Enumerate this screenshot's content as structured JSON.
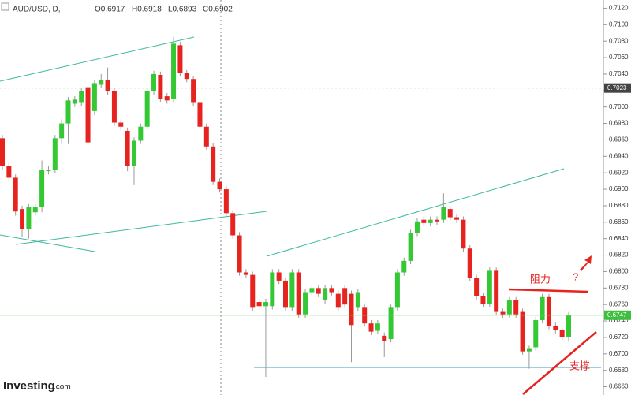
{
  "chart_data": {
    "type": "candlestick",
    "title": "AUD/USD, D,",
    "ohlc_header": [
      "O0.6917",
      "H0.6918",
      "L0.6893",
      "C0.6902"
    ],
    "open": [
      0.6962,
      0.6928,
      0.6914,
      0.6876,
      0.6852,
      0.6872,
      0.6878,
      0.6922,
      0.6924,
      0.6962,
      0.698,
      0.7004,
      0.7005,
      0.7024,
      0.6995,
      0.7027,
      0.7033,
      0.7019,
      0.6981,
      0.6971,
      0.6928,
      0.6959,
      0.6976,
      0.7019,
      0.7039,
      0.7013,
      0.701,
      0.7075,
      0.7041,
      0.7034,
      0.7005,
      0.6976,
      0.6952,
      0.6909,
      0.69,
      0.6871,
      0.6844,
      0.6799,
      0.6796,
      0.6763,
      0.6758,
      0.6758,
      0.6799,
      0.6789,
      0.6756,
      0.6799,
      0.6748,
      0.6775,
      0.678,
      0.6765,
      0.678,
      0.6773,
      0.678,
      0.6773,
      0.6756,
      0.6756,
      0.6737,
      0.6728,
      0.6722,
      0.6718,
      0.6756,
      0.6799,
      0.6813,
      0.6847,
      0.6863,
      0.6859,
      0.6863,
      0.6863,
      0.6876,
      0.6866,
      0.6863,
      0.6828,
      0.6792,
      0.677,
      0.6761,
      0.6801,
      0.6751,
      0.6748,
      0.6765,
      0.6751,
      0.6703,
      0.6708,
      0.6741,
      0.6769,
      0.6734,
      0.6729,
      0.672
    ],
    "high": [
      0.6966,
      0.6932,
      0.6918,
      0.688,
      0.6882,
      0.6882,
      0.6935,
      0.6928,
      0.6966,
      0.6985,
      0.7012,
      0.7013,
      0.7023,
      0.7028,
      0.7033,
      0.704,
      0.7048,
      0.7023,
      0.6985,
      0.6975,
      0.6963,
      0.698,
      0.7023,
      0.7044,
      0.7043,
      0.7017,
      0.7085,
      0.7079,
      0.7045,
      0.7038,
      0.7009,
      0.698,
      0.6956,
      0.6913,
      0.6904,
      0.6875,
      0.6848,
      0.6803,
      0.68,
      0.6767,
      0.6767,
      0.6803,
      0.6803,
      0.6793,
      0.6803,
      0.6803,
      0.6779,
      0.6784,
      0.6784,
      0.6784,
      0.6784,
      0.6777,
      0.6784,
      0.6777,
      0.6779,
      0.676,
      0.6741,
      0.6741,
      0.6726,
      0.676,
      0.6803,
      0.6817,
      0.6851,
      0.6865,
      0.6867,
      0.6867,
      0.6867,
      0.6895,
      0.688,
      0.687,
      0.6867,
      0.6832,
      0.6796,
      0.6774,
      0.6805,
      0.6805,
      0.6755,
      0.6769,
      0.6769,
      0.6755,
      0.671,
      0.6745,
      0.6773,
      0.6773,
      0.6738,
      0.6733,
      0.6751
    ],
    "low": [
      0.6924,
      0.691,
      0.6868,
      0.6842,
      0.684,
      0.6868,
      0.6872,
      0.6918,
      0.692,
      0.6955,
      0.6955,
      0.7,
      0.7001,
      0.695,
      0.699,
      0.7023,
      0.7015,
      0.6977,
      0.6972,
      0.6922,
      0.6905,
      0.6955,
      0.6972,
      0.7015,
      0.7006,
      0.7004,
      0.7005,
      0.7037,
      0.703,
      0.7001,
      0.6972,
      0.6948,
      0.6905,
      0.6896,
      0.6867,
      0.684,
      0.6795,
      0.6792,
      0.6752,
      0.6754,
      0.6672,
      0.6754,
      0.6785,
      0.6752,
      0.6752,
      0.6744,
      0.6744,
      0.6771,
      0.6769,
      0.6761,
      0.6771,
      0.6752,
      0.6756,
      0.669,
      0.6752,
      0.6733,
      0.6723,
      0.6724,
      0.6696,
      0.6714,
      0.6752,
      0.6795,
      0.6809,
      0.6843,
      0.6855,
      0.6855,
      0.6857,
      0.6859,
      0.6862,
      0.6859,
      0.6824,
      0.6788,
      0.6766,
      0.6757,
      0.6757,
      0.6747,
      0.6744,
      0.6744,
      0.6744,
      0.6699,
      0.6682,
      0.6704,
      0.6737,
      0.673,
      0.6725,
      0.6716,
      0.6716
    ],
    "close": [
      0.6928,
      0.6914,
      0.6873,
      0.6852,
      0.6878,
      0.6878,
      0.6924,
      0.6924,
      0.6962,
      0.698,
      0.7008,
      0.7009,
      0.7019,
      0.6957,
      0.7029,
      0.7033,
      0.7019,
      0.6981,
      0.6976,
      0.6928,
      0.6959,
      0.6976,
      0.7019,
      0.704,
      0.701,
      0.7008,
      0.7077,
      0.7041,
      0.7034,
      0.7005,
      0.6976,
      0.6952,
      0.6909,
      0.69,
      0.6871,
      0.6844,
      0.6799,
      0.6796,
      0.6756,
      0.6758,
      0.6763,
      0.6799,
      0.6789,
      0.6756,
      0.6799,
      0.6748,
      0.6775,
      0.678,
      0.6773,
      0.678,
      0.6775,
      0.6756,
      0.676,
      0.6735,
      0.6775,
      0.6737,
      0.6727,
      0.6737,
      0.6716,
      0.6756,
      0.6799,
      0.6813,
      0.6847,
      0.6861,
      0.6859,
      0.6863,
      0.6861,
      0.6878,
      0.6866,
      0.6863,
      0.6828,
      0.6792,
      0.677,
      0.6761,
      0.6801,
      0.6751,
      0.6748,
      0.6765,
      0.6748,
      0.6703,
      0.6706,
      0.6741,
      0.6769,
      0.6734,
      0.6729,
      0.672,
      0.6747
    ],
    "up_color": "#34c934",
    "down_color": "#e6231f",
    "ylim": [
      0.665,
      0.713
    ],
    "yticks": [
      {
        "value": 0.666,
        "label": "0.6660"
      },
      {
        "value": 0.668,
        "label": "0.6680"
      },
      {
        "value": 0.67,
        "label": "0.6700"
      },
      {
        "value": 0.672,
        "label": "0.6720"
      },
      {
        "value": 0.674,
        "label": "0.6740"
      },
      {
        "value": 0.676,
        "label": "0.6760"
      },
      {
        "value": 0.678,
        "label": "0.6780"
      },
      {
        "value": 0.68,
        "label": "0.6800"
      },
      {
        "value": 0.682,
        "label": "0.6820"
      },
      {
        "value": 0.684,
        "label": "0.6840"
      },
      {
        "value": 0.686,
        "label": "0.6860"
      },
      {
        "value": 0.688,
        "label": "0.6880"
      },
      {
        "value": 0.69,
        "label": "0.6900"
      },
      {
        "value": 0.692,
        "label": "0.6920"
      },
      {
        "value": 0.694,
        "label": "0.6940"
      },
      {
        "value": 0.696,
        "label": "0.6960"
      },
      {
        "value": 0.698,
        "label": "0.6980"
      },
      {
        "value": 0.7,
        "label": "0.7000"
      },
      {
        "value": 0.702,
        "label": "0.7020"
      },
      {
        "value": 0.704,
        "label": "0.7040"
      },
      {
        "value": 0.706,
        "label": "0.7060"
      },
      {
        "value": 0.708,
        "label": "0.7080"
      },
      {
        "value": 0.71,
        "label": "0.7100"
      },
      {
        "value": 0.712,
        "label": "0.7120"
      }
    ],
    "last_price": 0.6747,
    "crosshair_price": 0.7023,
    "annotations": [
      "阻力",
      "?",
      "支撑"
    ],
    "logo": [
      "Investing",
      ".com"
    ]
  }
}
